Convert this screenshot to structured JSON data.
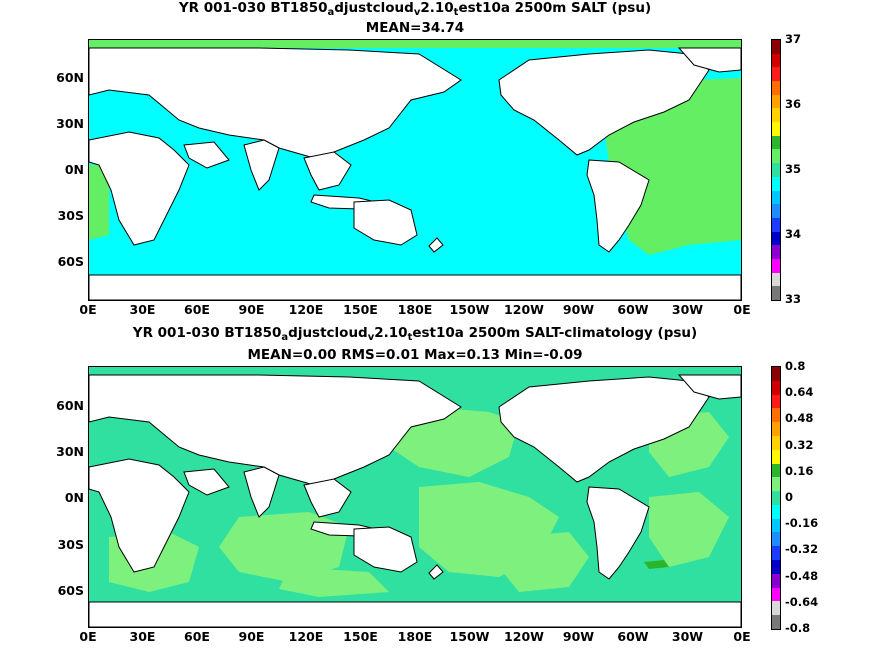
{
  "panels": [
    {
      "title_parts": [
        "YR 001-030 BT1850",
        "a",
        "djustcloud",
        "v",
        "2.10",
        "t",
        "est10a 2500m SALT (psu)"
      ],
      "stats": "MEAN=34.74",
      "colorbar": {
        "ticks": [
          "37",
          "36",
          "35",
          "34",
          "33"
        ],
        "colors": [
          "#8b0000",
          "#d10000",
          "#ff1a1a",
          "#ff6e00",
          "#ffa200",
          "#ffd200",
          "#fff800",
          "#2ab52a",
          "#64ee64",
          "#30e0a0",
          "#00ffff",
          "#00c8ff",
          "#1e8cff",
          "#1e3cff",
          "#0000c8",
          "#8a00d0",
          "#ff00ff",
          "#d8d8d8",
          "#787878"
        ]
      },
      "field_colors": {
        "ocean": "#00ffff",
        "atlantic": "#64ee64"
      }
    },
    {
      "title_parts": [
        "YR 001-030 BT1850",
        "a",
        "djustcloud",
        "v",
        "2.10",
        "t",
        "est10a 2500m SALT-climatology (psu)"
      ],
      "stats": "MEAN=0.00   RMS=0.01   Max=0.13   Min=-0.09",
      "colorbar": {
        "ticks": [
          "0.8",
          "0.64",
          "0.48",
          "0.32",
          "0.16",
          "0",
          "-0.16",
          "-0.32",
          "-0.48",
          "-0.64",
          "-0.8"
        ],
        "colors": [
          "#8b0000",
          "#d10000",
          "#ff1a1a",
          "#ff6e00",
          "#ffa200",
          "#ffd200",
          "#fff800",
          "#2ab52a",
          "#7ef07e",
          "#30e0a0",
          "#00ffff",
          "#00c8ff",
          "#1e8cff",
          "#1e3cff",
          "#0000c8",
          "#8a00d0",
          "#ff00ff",
          "#d8d8d8",
          "#787878"
        ]
      },
      "field_colors": {
        "base": "#30e0a0",
        "patch": "#7ef07e"
      }
    }
  ],
  "lat_labels": [
    "60N",
    "30N",
    "0N",
    "30S",
    "60S"
  ],
  "lon_labels": [
    "0E",
    "30E",
    "60E",
    "90E",
    "120E",
    "150E",
    "180E",
    "150W",
    "120W",
    "90W",
    "60W",
    "30W",
    "0E"
  ]
}
